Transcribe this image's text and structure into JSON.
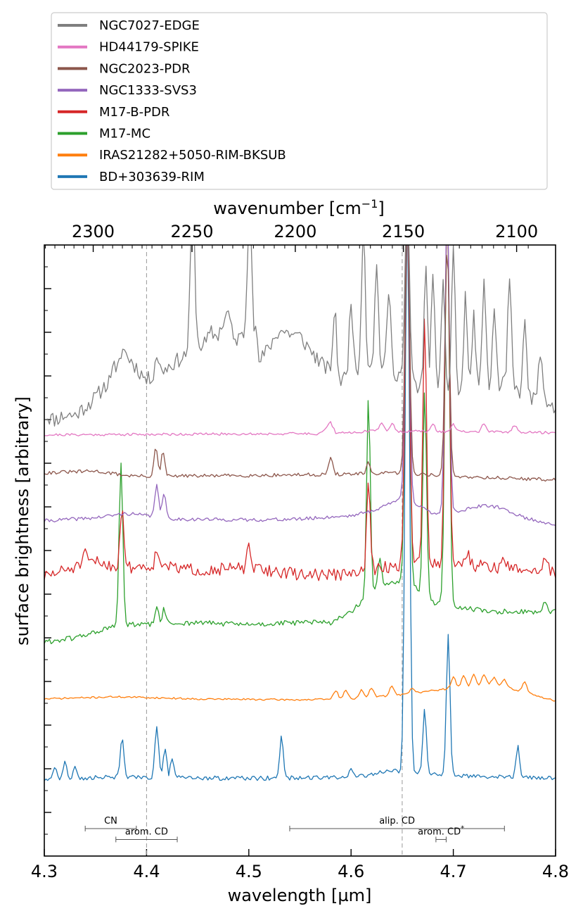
{
  "chart_data": {
    "type": "line",
    "xlabel": "wavelength [µm]",
    "ylabel": "surface brightness [arbitrary]",
    "top_xlabel": "wavenumber [cm",
    "top_xlabel_sup": "−1",
    "top_xlabel_end": "]",
    "xlim": [
      4.3,
      4.8
    ],
    "ylim": [
      0,
      14
    ],
    "x_ticks": [
      4.3,
      4.4,
      4.5,
      4.6,
      4.7,
      4.8
    ],
    "x_tick_labels": [
      "4.3",
      "4.4",
      "4.5",
      "4.6",
      "4.7",
      "4.8"
    ],
    "top_ticks": [
      2300,
      2250,
      2200,
      2150,
      2100
    ],
    "top_tick_labels": [
      "2300",
      "2250",
      "2200",
      "2150",
      "2100"
    ],
    "y_major_ticks": [
      1,
      2,
      3,
      4,
      5,
      6,
      7,
      8,
      9,
      10,
      11,
      12,
      13
    ],
    "legend_location": "above plot",
    "vlines": [
      4.4,
      4.65
    ],
    "annotations": [
      {
        "label": "CN",
        "x0": 4.34,
        "x1": 4.39,
        "y": 0.63
      },
      {
        "label": "arom. CD",
        "x0": 4.37,
        "x1": 4.43,
        "y": 0.38
      },
      {
        "label": "alip. CD",
        "x0": 4.54,
        "x1": 4.75,
        "y": 0.63
      },
      {
        "label": "arom. CD",
        "label_sup": "*",
        "x0": 4.683,
        "x1": 4.693,
        "y": 0.38
      }
    ],
    "series": [
      {
        "name": "NGC7027-EDGE",
        "color": "#7f7f7f",
        "baseline": 10.3,
        "end": 10.28,
        "noise": 0.18,
        "seed": 11,
        "bumps": [],
        "points": [
          [
            4.3,
            10.1
          ],
          [
            4.31,
            10.0
          ],
          [
            4.32,
            10.1
          ],
          [
            4.33,
            10.1
          ],
          [
            4.34,
            10.3
          ],
          [
            4.35,
            10.5
          ],
          [
            4.36,
            10.8
          ],
          [
            4.37,
            10.9
          ],
          [
            4.376,
            11.65
          ],
          [
            4.383,
            11.4
          ],
          [
            4.4,
            10.9
          ],
          [
            4.42,
            11.2
          ],
          [
            4.44,
            11.5
          ],
          [
            4.46,
            11.8
          ],
          [
            4.47,
            11.95
          ],
          [
            4.48,
            12.5
          ],
          [
            4.485,
            11.8
          ],
          [
            4.5,
            12.0
          ],
          [
            4.51,
            11.3
          ],
          [
            4.53,
            12.05
          ],
          [
            4.55,
            11.9
          ],
          [
            4.57,
            11.3
          ],
          [
            4.59,
            10.9
          ],
          [
            4.62,
            11.3
          ],
          [
            4.65,
            11.0
          ],
          [
            4.68,
            10.5
          ],
          [
            4.71,
            10.6
          ],
          [
            4.75,
            10.8
          ],
          [
            4.8,
            10.2
          ]
        ],
        "peaks": [
          [
            4.367,
            11.3,
            0.0025
          ],
          [
            4.38,
            11.3,
            0.0025
          ],
          [
            4.41,
            11.5,
            0.0025
          ],
          [
            4.445,
            15,
            0.003
          ],
          [
            4.463,
            12.0,
            0.0025
          ],
          [
            4.48,
            12.2,
            0.0025
          ],
          [
            4.501,
            15,
            0.003
          ],
          [
            4.506,
            12.2,
            0.0025
          ],
          [
            4.532,
            11.5,
            0.0025
          ],
          [
            4.584,
            12.5,
            0.0025
          ],
          [
            4.6,
            12.8,
            0.0025
          ],
          [
            4.612,
            14.5,
            0.0025
          ],
          [
            4.625,
            13.5,
            0.0025
          ],
          [
            4.637,
            13.0,
            0.0025
          ],
          [
            4.655,
            15,
            0.003
          ],
          [
            4.673,
            13.5,
            0.0025
          ],
          [
            4.68,
            13.5,
            0.0025
          ],
          [
            4.69,
            13.3,
            0.0025
          ],
          [
            4.7,
            14.0,
            0.0025
          ],
          [
            4.712,
            12.8,
            0.0025
          ],
          [
            4.72,
            12.4,
            0.0025
          ],
          [
            4.73,
            13.3,
            0.0025
          ],
          [
            4.74,
            12.5,
            0.0025
          ],
          [
            4.755,
            13.2,
            0.0025
          ],
          [
            4.77,
            12.2,
            0.0025
          ],
          [
            4.785,
            11.6,
            0.0025
          ]
        ]
      },
      {
        "name": "HD44179-SPIKE",
        "color": "#e377c2",
        "baseline": 9.65,
        "end": 9.68,
        "noise": 0.03,
        "seed": 21,
        "bumps": [],
        "points": [
          [
            4.3,
            9.65
          ],
          [
            4.57,
            9.68
          ],
          [
            4.58,
            9.95
          ],
          [
            4.585,
            9.68
          ],
          [
            4.62,
            9.74
          ],
          [
            4.8,
            9.7
          ]
        ],
        "peaks": [
          [
            4.63,
            9.95,
            0.003
          ],
          [
            4.64,
            9.9,
            0.003
          ],
          [
            4.68,
            9.88,
            0.003
          ],
          [
            4.7,
            9.9,
            0.003
          ],
          [
            4.73,
            9.92,
            0.003
          ],
          [
            4.76,
            9.88,
            0.003
          ]
        ]
      },
      {
        "name": "NGC2023-PDR",
        "color": "#8c564b",
        "baseline": 8.75,
        "end": 8.62,
        "noise": 0.04,
        "seed": 31,
        "bumps": [],
        "points": [
          [
            4.3,
            8.78
          ],
          [
            4.35,
            8.82
          ],
          [
            4.38,
            8.72
          ],
          [
            4.4,
            8.7
          ],
          [
            4.5,
            8.72
          ],
          [
            4.6,
            8.75
          ],
          [
            4.65,
            8.78
          ],
          [
            4.7,
            8.7
          ],
          [
            4.8,
            8.62
          ]
        ],
        "peaks": [
          [
            4.409,
            9.35,
            0.0025
          ],
          [
            4.416,
            9.25,
            0.0025
          ],
          [
            4.58,
            9.1,
            0.003
          ],
          [
            4.617,
            9.0,
            0.0025
          ],
          [
            4.655,
            15,
            0.003
          ],
          [
            4.694,
            14,
            0.003
          ]
        ]
      },
      {
        "name": "NGC1333-SVS3",
        "color": "#9467bd",
        "baseline": 7.7,
        "end": 7.6,
        "noise": 0.04,
        "seed": 41,
        "bumps": [
          [
            4.74,
            0.18,
            0.025
          ]
        ],
        "points": [
          [
            4.3,
            7.68
          ],
          [
            4.35,
            7.75
          ],
          [
            4.38,
            7.85
          ],
          [
            4.4,
            7.8
          ],
          [
            4.43,
            7.72
          ],
          [
            4.5,
            7.7
          ],
          [
            4.55,
            7.72
          ],
          [
            4.6,
            7.8
          ],
          [
            4.62,
            7.9
          ],
          [
            4.65,
            8.2
          ],
          [
            4.68,
            7.85
          ],
          [
            4.72,
            7.9
          ],
          [
            4.8,
            7.6
          ]
        ],
        "peaks": [
          [
            4.41,
            8.55,
            0.0025
          ],
          [
            4.417,
            8.3,
            0.0025
          ],
          [
            4.655,
            15,
            0.003
          ],
          [
            4.694,
            15,
            0.003
          ]
        ]
      },
      {
        "name": "M17-B-PDR",
        "color": "#d62728",
        "baseline": 6.5,
        "end": 6.5,
        "noise": 0.14,
        "seed": 51,
        "bumps": [],
        "points": [
          [
            4.3,
            6.4
          ],
          [
            4.32,
            6.55
          ],
          [
            4.35,
            6.75
          ],
          [
            4.375,
            6.6
          ],
          [
            4.4,
            6.65
          ],
          [
            4.45,
            6.55
          ],
          [
            4.5,
            6.6
          ],
          [
            4.55,
            6.45
          ],
          [
            4.6,
            6.45
          ],
          [
            4.63,
            6.6
          ],
          [
            4.66,
            6.7
          ],
          [
            4.7,
            6.7
          ],
          [
            4.75,
            6.6
          ],
          [
            4.8,
            6.5
          ]
        ],
        "peaks": [
          [
            4.376,
            8.05,
            0.0025
          ],
          [
            4.34,
            6.9,
            0.003
          ],
          [
            4.41,
            7.0,
            0.0025
          ],
          [
            4.418,
            6.8,
            0.0025
          ],
          [
            4.5,
            7.05,
            0.0025
          ],
          [
            4.617,
            8.5,
            0.0025
          ],
          [
            4.655,
            15,
            0.003
          ],
          [
            4.672,
            12.5,
            0.0025
          ],
          [
            4.694,
            15,
            0.003
          ],
          [
            4.714,
            7.0,
            0.0025
          ],
          [
            4.75,
            6.8,
            0.0025
          ],
          [
            4.79,
            6.9,
            0.0025
          ]
        ]
      },
      {
        "name": "M17-MC",
        "color": "#2ca02c",
        "baseline": 5.1,
        "end": 5.6,
        "noise": 0.06,
        "seed": 61,
        "bumps": [],
        "points": [
          [
            4.3,
            4.9
          ],
          [
            4.33,
            5.0
          ],
          [
            4.36,
            5.2
          ],
          [
            4.375,
            5.3
          ],
          [
            4.4,
            5.3
          ],
          [
            4.45,
            5.35
          ],
          [
            4.5,
            5.3
          ],
          [
            4.55,
            5.35
          ],
          [
            4.58,
            5.35
          ],
          [
            4.6,
            5.6
          ],
          [
            4.62,
            6.0
          ],
          [
            4.64,
            6.3
          ],
          [
            4.66,
            6.2
          ],
          [
            4.68,
            5.8
          ],
          [
            4.7,
            5.7
          ],
          [
            4.74,
            5.6
          ],
          [
            4.8,
            5.6
          ]
        ],
        "peaks": [
          [
            4.375,
            9.05,
            0.0025
          ],
          [
            4.41,
            5.7,
            0.0025
          ],
          [
            4.417,
            5.65,
            0.0025
          ],
          [
            4.617,
            10.5,
            0.0025
          ],
          [
            4.628,
            6.8,
            0.0025
          ],
          [
            4.655,
            15,
            0.003
          ],
          [
            4.672,
            10.7,
            0.0025
          ],
          [
            4.694,
            15,
            0.003
          ],
          [
            4.79,
            5.85,
            0.0025
          ]
        ]
      },
      {
        "name": "IRAS21282+5050-RIM-BKSUB",
        "color": "#ff7f0e",
        "baseline": 3.6,
        "end": 3.55,
        "noise": 0.02,
        "seed": 71,
        "bumps": [],
        "points": [
          [
            4.3,
            3.6
          ],
          [
            4.37,
            3.65
          ],
          [
            4.45,
            3.6
          ],
          [
            4.55,
            3.58
          ],
          [
            4.6,
            3.6
          ],
          [
            4.65,
            3.7
          ],
          [
            4.7,
            3.85
          ],
          [
            4.74,
            3.95
          ],
          [
            4.8,
            3.55
          ]
        ],
        "peaks": [
          [
            4.585,
            3.8,
            0.003
          ],
          [
            4.595,
            3.8,
            0.003
          ],
          [
            4.61,
            3.8,
            0.003
          ],
          [
            4.62,
            3.85,
            0.003
          ],
          [
            4.64,
            3.9,
            0.003
          ],
          [
            4.66,
            3.85,
            0.003
          ],
          [
            4.7,
            4.1,
            0.003
          ],
          [
            4.71,
            4.15,
            0.003
          ],
          [
            4.72,
            4.15,
            0.003
          ],
          [
            4.73,
            4.15,
            0.003
          ],
          [
            4.74,
            4.1,
            0.003
          ],
          [
            4.75,
            4.05,
            0.003
          ],
          [
            4.77,
            4.0,
            0.003
          ]
        ]
      },
      {
        "name": "BD+303639-RIM",
        "color": "#1f77b4",
        "baseline": 1.8,
        "end": 1.78,
        "noise": 0.05,
        "seed": 81,
        "bumps": [],
        "points": [
          [
            4.3,
            1.75
          ],
          [
            4.35,
            1.8
          ],
          [
            4.4,
            1.8
          ],
          [
            4.5,
            1.78
          ],
          [
            4.6,
            1.8
          ],
          [
            4.64,
            1.95
          ],
          [
            4.7,
            1.85
          ],
          [
            4.8,
            1.78
          ]
        ],
        "peaks": [
          [
            4.31,
            2.05,
            0.0025
          ],
          [
            4.32,
            2.15,
            0.0025
          ],
          [
            4.33,
            2.05,
            0.0025
          ],
          [
            4.376,
            2.75,
            0.0025
          ],
          [
            4.41,
            3.0,
            0.0025
          ],
          [
            4.418,
            2.45,
            0.0025
          ],
          [
            4.425,
            2.2,
            0.0025
          ],
          [
            4.532,
            2.75,
            0.0025
          ],
          [
            4.6,
            2.0,
            0.0025
          ],
          [
            4.655,
            15,
            0.003
          ],
          [
            4.672,
            3.35,
            0.0025
          ],
          [
            4.695,
            5.05,
            0.0025
          ],
          [
            4.763,
            2.5,
            0.0025
          ]
        ]
      }
    ]
  }
}
